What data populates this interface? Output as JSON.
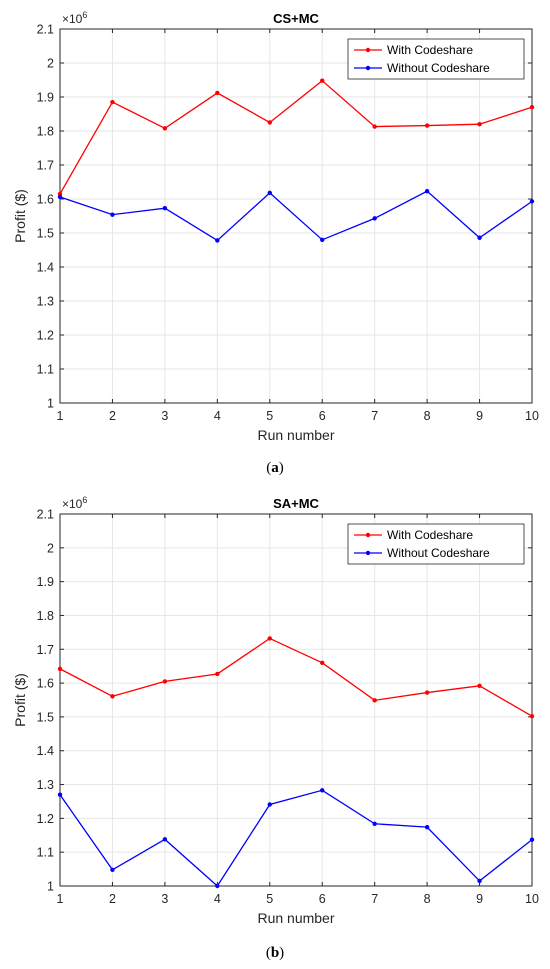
{
  "figure": {
    "panels": [
      {
        "letter": "a",
        "caption_open": "(",
        "caption_close": ")"
      },
      {
        "letter": "b",
        "caption_open": "(",
        "caption_close": ")"
      }
    ]
  },
  "chart_data": [
    {
      "type": "line",
      "title": "CS+MC",
      "xlabel": "Run number",
      "ylabel": "Profit ($)",
      "y_multiplier": {
        "base": "×10",
        "exponent": "6"
      },
      "x": [
        1,
        2,
        3,
        4,
        5,
        6,
        7,
        8,
        9,
        10
      ],
      "xlim": [
        1,
        10
      ],
      "ylim": [
        1,
        2.1
      ],
      "xticks": [
        "1",
        "2",
        "3",
        "4",
        "5",
        "6",
        "7",
        "8",
        "9",
        "10"
      ],
      "yticks": [
        "1",
        "1.1",
        "1.2",
        "1.3",
        "1.4",
        "1.5",
        "1.6",
        "1.7",
        "1.8",
        "1.9",
        "2",
        "2.1"
      ],
      "grid": true,
      "legend_position": "top-right",
      "series": [
        {
          "name": "With Codeshare",
          "color": "#ff0000",
          "values": [
            1.615,
            1.885,
            1.808,
            1.912,
            1.825,
            1.948,
            1.813,
            1.816,
            1.82,
            1.87
          ]
        },
        {
          "name": "Without Codeshare",
          "color": "#0000ff",
          "values": [
            1.606,
            1.554,
            1.573,
            1.478,
            1.618,
            1.48,
            1.543,
            1.623,
            1.486,
            1.593
          ]
        }
      ]
    },
    {
      "type": "line",
      "title": "SA+MC",
      "xlabel": "Run number",
      "ylabel": "Profit ($)",
      "y_multiplier": {
        "base": "×10",
        "exponent": "6"
      },
      "x": [
        1,
        2,
        3,
        4,
        5,
        6,
        7,
        8,
        9,
        10
      ],
      "xlim": [
        1,
        10
      ],
      "ylim": [
        1,
        2.1
      ],
      "xticks": [
        "1",
        "2",
        "3",
        "4",
        "5",
        "6",
        "7",
        "8",
        "9",
        "10"
      ],
      "yticks": [
        "1",
        "1.1",
        "1.2",
        "1.3",
        "1.4",
        "1.5",
        "1.6",
        "1.7",
        "1.8",
        "1.9",
        "2",
        "2.1"
      ],
      "grid": true,
      "legend_position": "top-right",
      "series": [
        {
          "name": "With Codeshare",
          "color": "#ff0000",
          "values": [
            1.642,
            1.561,
            1.605,
            1.627,
            1.732,
            1.66,
            1.549,
            1.572,
            1.592,
            1.502
          ]
        },
        {
          "name": "Without Codeshare",
          "color": "#0000ff",
          "values": [
            1.27,
            1.048,
            1.138,
            1.0,
            1.241,
            1.283,
            1.184,
            1.174,
            1.015,
            1.137
          ]
        }
      ]
    }
  ]
}
